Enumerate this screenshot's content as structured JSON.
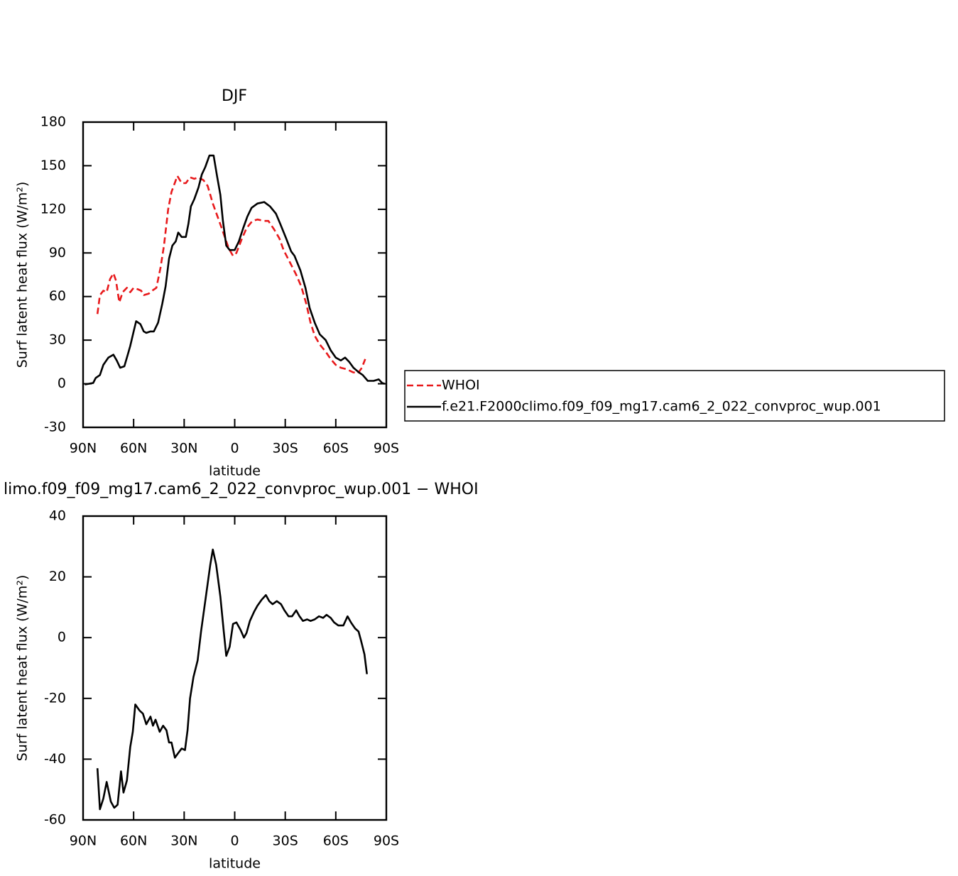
{
  "chart_data": [
    {
      "type": "line",
      "title": "DJF",
      "xlabel": "latitude",
      "ylabel": "Surf latent heat flux (W/m²)",
      "xlim": [
        90,
        -90
      ],
      "xticks": [
        {
          "value": 90,
          "label": "90N"
        },
        {
          "value": 60,
          "label": "60N"
        },
        {
          "value": 30,
          "label": "30N"
        },
        0,
        {
          "value": -30,
          "label": "30S"
        },
        {
          "value": -60,
          "label": "60S"
        },
        {
          "value": -90,
          "label": "90S"
        }
      ],
      "ylim": [
        -30,
        180
      ],
      "yticks": [
        -30,
        0,
        30,
        60,
        90,
        120,
        150,
        180
      ],
      "legend": "right",
      "series": [
        {
          "name": "WHOI",
          "color": "#e8191b",
          "dash": true,
          "x": [
            81.5,
            80,
            78,
            76,
            74,
            72,
            70.5,
            68.5,
            66.5,
            64,
            62,
            60,
            57.5,
            55.5,
            54,
            51,
            49,
            46.5,
            44,
            42,
            39.5,
            37.5,
            34,
            31.5,
            29,
            26.5,
            24,
            21.5,
            18.5,
            16,
            13,
            10.5,
            8,
            5,
            3.5,
            1,
            -1,
            -4,
            -7,
            -10.5,
            -13.5,
            -17.5,
            -20,
            -23.5,
            -26.5,
            -29,
            -33,
            -36.5,
            -39.5,
            -42.5,
            -45,
            -47.5,
            -50.5,
            -54,
            -57,
            -60,
            -63,
            -66.5,
            -70,
            -73,
            -75.5,
            -77.5
          ],
          "values": [
            48,
            61,
            64,
            63,
            72,
            76,
            71,
            56,
            63,
            66,
            63,
            66,
            65,
            64,
            61,
            62,
            64,
            66,
            80,
            95,
            120,
            132,
            143,
            138,
            138,
            142,
            141,
            142,
            140,
            136,
            124,
            116,
            108,
            98,
            93,
            88,
            90,
            99,
            107,
            112,
            113,
            112,
            112,
            106,
            100,
            92,
            83,
            75,
            67,
            55,
            42,
            33,
            27,
            22,
            17,
            13,
            11,
            10,
            8,
            7,
            11,
            17
          ]
        },
        {
          "name": "f.e21.F2000climo.f09_f09_mg17.cam6_2_022_convproc_wup.001",
          "color": "#000000",
          "dash": false,
          "x": [
            89,
            84,
            82.5,
            80,
            78,
            75,
            72,
            70,
            68,
            65.5,
            63.5,
            62,
            60,
            58.5,
            56,
            54,
            52.5,
            50,
            48,
            45.5,
            43,
            41,
            39,
            37,
            35,
            33.5,
            31.5,
            29,
            27.5,
            26,
            24,
            21.5,
            19.5,
            17.5,
            15,
            12.5,
            10.5,
            8.5,
            7,
            5,
            3,
            0,
            -2.5,
            -5,
            -7.5,
            -10,
            -13.5,
            -17.5,
            -21,
            -24.5,
            -27,
            -30.5,
            -33.5,
            -35.5,
            -39,
            -42,
            -44.5,
            -47.5,
            -50.5,
            -54,
            -57,
            -60,
            -63,
            -65.5,
            -68,
            -70.5,
            -73.5,
            -76,
            -79,
            -82.5,
            -85.5,
            -87.5,
            -89
          ],
          "values": [
            -0.5,
            0.5,
            4,
            6,
            13,
            18,
            20,
            16,
            11,
            12,
            20,
            26,
            36,
            43,
            41,
            36,
            35,
            36,
            36,
            42,
            55,
            67,
            86,
            95,
            98,
            104,
            101,
            101,
            110,
            122,
            127,
            135,
            144,
            149,
            157,
            157,
            143,
            130,
            112,
            95,
            92,
            92,
            98,
            107,
            115,
            121,
            124,
            125,
            122,
            117,
            110,
            100,
            91,
            88,
            78,
            66,
            52,
            42,
            34,
            30,
            23,
            18,
            16,
            18,
            15,
            11,
            8,
            6,
            2,
            2,
            3,
            0.5,
            0
          ]
        }
      ]
    },
    {
      "type": "line",
      "title": "limo.f09_f09_mg17.cam6_2_022_convproc_wup.001 − WHOI",
      "xlabel": "latitude",
      "ylabel": "Surf latent heat flux (W/m²)",
      "xlim": [
        90,
        -90
      ],
      "xticks": [
        {
          "value": 90,
          "label": "90N"
        },
        {
          "value": 60,
          "label": "60N"
        },
        {
          "value": 30,
          "label": "30N"
        },
        0,
        {
          "value": -30,
          "label": "30S"
        },
        {
          "value": -60,
          "label": "60S"
        },
        {
          "value": -90,
          "label": "90S"
        }
      ],
      "ylim": [
        -60,
        40
      ],
      "yticks": [
        -60,
        -40,
        -20,
        0,
        20,
        40
      ],
      "series": [
        {
          "color": "#000000",
          "dash": false,
          "x": [
            81.5,
            80,
            78,
            76,
            73.5,
            71.5,
            69.5,
            67.5,
            66,
            64,
            62,
            60.5,
            59,
            56.5,
            54.5,
            52.5,
            50,
            48.5,
            47,
            44.5,
            42.5,
            40.5,
            39,
            37.5,
            35.5,
            33.5,
            31.5,
            29.5,
            28,
            26.5,
            24.5,
            22,
            20,
            17,
            14.5,
            13,
            11,
            8.5,
            6.5,
            5,
            3,
            1,
            -1,
            -3.5,
            -5.5,
            -7,
            -9,
            -11.5,
            -13.5,
            -16,
            -18.5,
            -20.5,
            -22.5,
            -25,
            -27.5,
            -29.5,
            -32,
            -34,
            -36.5,
            -38.5,
            -40.5,
            -43,
            -45,
            -47.5,
            -50,
            -52.5,
            -54.5,
            -57,
            -59,
            -61.5,
            -64.5,
            -67,
            -69,
            -71.5,
            -73.5,
            -75,
            -77,
            -78.5
          ],
          "values": [
            -43,
            -56.5,
            -53,
            -47.5,
            -54,
            -56,
            -55,
            -44,
            -51,
            -47,
            -36,
            -31,
            -22,
            -24,
            -25,
            -28.5,
            -26,
            -29,
            -27,
            -31,
            -29,
            -30.5,
            -34.5,
            -34.5,
            -39.5,
            -38,
            -36.5,
            -37,
            -30.5,
            -20,
            -13,
            -7.5,
            2,
            14,
            24,
            29,
            24,
            13.5,
            2,
            -6,
            -3,
            4.5,
            5,
            2.5,
            0,
            1.5,
            5.5,
            8.5,
            10.5,
            12.5,
            14,
            12,
            11,
            12,
            11,
            9,
            7,
            7,
            9,
            7,
            5.5,
            6,
            5.5,
            6,
            7,
            6.5,
            7.5,
            6.5,
            5,
            4,
            4,
            7,
            5,
            3,
            2,
            -1,
            -5.5,
            -12
          ]
        }
      ]
    }
  ]
}
